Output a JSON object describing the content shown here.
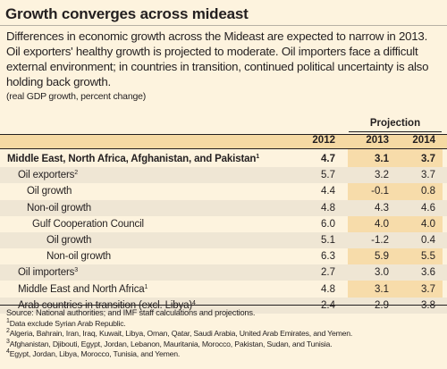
{
  "title": "Growth converges across mideast",
  "intro": "Differences in economic growth across the Mideast are expected to narrow in 2013. Oil exporters' healthy growth is projected to moderate. Oil importers face a difficult external environment; in countries in transition, continued political uncertainty is also holding back growth.",
  "unit_note": "(real GDP growth, percent change)",
  "table": {
    "projection_label": "Projection",
    "columns": [
      "2012",
      "2013",
      "2014"
    ],
    "rows": [
      {
        "label": "Middle East, North Africa, Afghanistan, and Pakistan",
        "sup": "1",
        "values": [
          "4.7",
          "3.1",
          "3.7"
        ],
        "bold": true,
        "indent": 0
      },
      {
        "label": "Oil exporters",
        "sup": "2",
        "values": [
          "5.7",
          "3.2",
          "3.7"
        ],
        "bold": false,
        "indent": 1
      },
      {
        "label": "Oil growth",
        "sup": "",
        "values": [
          "4.4",
          "-0.1",
          "0.8"
        ],
        "bold": false,
        "indent": 2
      },
      {
        "label": "Non-oil growth",
        "sup": "",
        "values": [
          "4.8",
          "4.3",
          "4.6"
        ],
        "bold": false,
        "indent": 2
      },
      {
        "label": "Gulf Cooperation Council",
        "sup": "",
        "values": [
          "6.0",
          "4.0",
          "4.0"
        ],
        "bold": false,
        "indent": 3
      },
      {
        "label": "Oil growth",
        "sup": "",
        "values": [
          "5.1",
          "-1.2",
          "0.4"
        ],
        "bold": false,
        "indent": 4
      },
      {
        "label": "Non-oil growth",
        "sup": "",
        "values": [
          "6.3",
          "5.9",
          "5.5"
        ],
        "bold": false,
        "indent": 4
      },
      {
        "label": "Oil importers",
        "sup": "3",
        "values": [
          "2.7",
          "3.0",
          "3.6"
        ],
        "bold": false,
        "indent": 1
      },
      {
        "label": "Middle East and North Africa",
        "sup": "1",
        "values": [
          "4.8",
          "3.1",
          "3.7"
        ],
        "bold": false,
        "indent": 1
      },
      {
        "label": "Arab countries in transition (excl. Libya)",
        "sup": "4",
        "values": [
          "2.4",
          "2.9",
          "3.8"
        ],
        "bold": false,
        "indent": 1
      }
    ]
  },
  "notes": {
    "source": "Source: National authorities; and IMF staff calculations and projections.",
    "footnotes": [
      {
        "num": "1",
        "text": "Data exclude Syrian Arab Republic."
      },
      {
        "num": "2",
        "text": "Algeria, Bahrain, Iran, Iraq, Kuwait, Libya, Oman, Qatar, Saudi Arabia, United Arab Emirates, and Yemen."
      },
      {
        "num": "3",
        "text": "Afghanistan, Djibouti, Egypt, Jordan, Lebanon, Mauritania, Morocco, Pakistan, Sudan, and Tunisia."
      },
      {
        "num": "4",
        "text": "Egypt, Jordan, Libya, Morocco, Tunisia, and Yemen."
      }
    ]
  },
  "colors": {
    "background": "#fdf3de",
    "header_band": "#f5d9a3",
    "projection_shade": "#f7dcaa",
    "alt_row": "#efe6d4"
  }
}
